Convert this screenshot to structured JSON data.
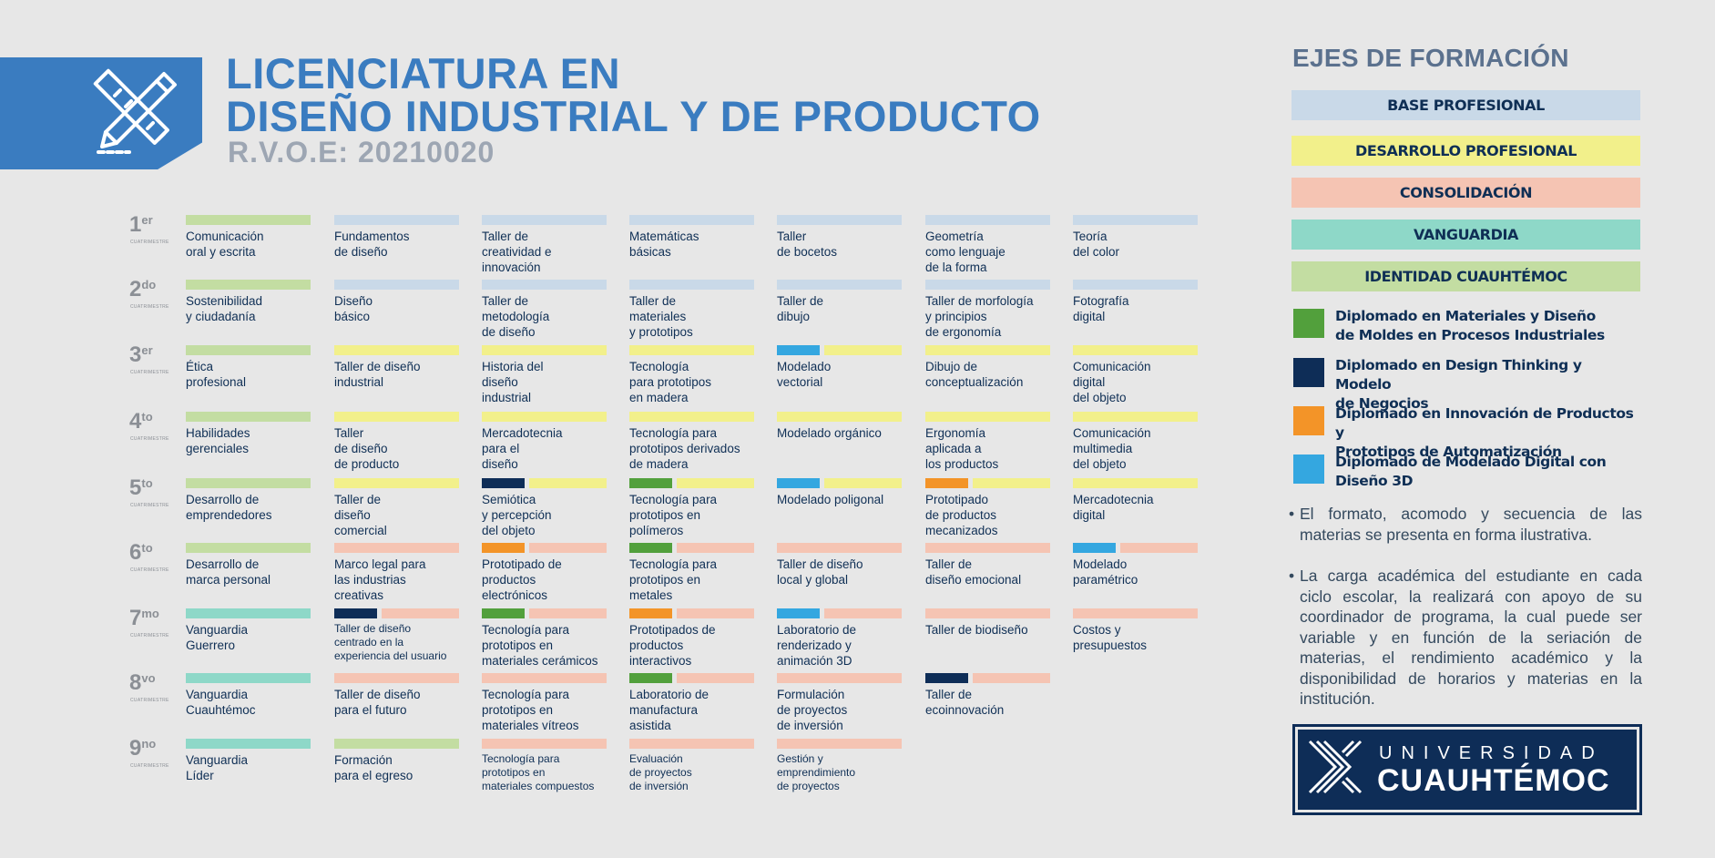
{
  "header": {
    "title_line1": "LICENCIATURA EN",
    "title_line2": "DISEÑO INDUSTRIAL Y DE PRODUCTO",
    "rvoe": "R.V.O.E: 20210020"
  },
  "colors": {
    "base": "#c9d9e8",
    "desarrollo": "#f2f08b",
    "consolidacion": "#f5c4b3",
    "vanguardia": "#8ed8c8",
    "identidad": "#c3dda2",
    "dip_materiales": "#52a03c",
    "dip_design_thinking": "#0e2d57",
    "dip_innovacion": "#f39428",
    "dip_modelado": "#34a7e0"
  },
  "terms": [
    {
      "num": "1",
      "sup": "er",
      "sub": "CUATRIMESTRE"
    },
    {
      "num": "2",
      "sup": "do",
      "sub": "CUATRIMESTRE"
    },
    {
      "num": "3",
      "sup": "er",
      "sub": "CUATRIMESTRE"
    },
    {
      "num": "4",
      "sup": "to",
      "sub": "CUATRIMESTRE"
    },
    {
      "num": "5",
      "sup": "to",
      "sub": "CUATRIMESTRE"
    },
    {
      "num": "6",
      "sup": "to",
      "sub": "CUATRIMESTRE"
    },
    {
      "num": "7",
      "sup": "mo",
      "sub": "CUATRIMESTRE"
    },
    {
      "num": "8",
      "sup": "vo",
      "sub": "CUATRIMESTRE"
    },
    {
      "num": "9",
      "sup": "no",
      "sub": "CUATRIMESTRE"
    }
  ],
  "courses": [
    [
      {
        "text": "Comunicación\noral y escrita",
        "axis": "identidad"
      },
      {
        "text": "Fundamentos\nde diseño",
        "axis": "base"
      },
      {
        "text": "Taller de\ncreatividad e\ninnovación",
        "axis": "base"
      },
      {
        "text": "Matemáticas\nbásicas",
        "axis": "base"
      },
      {
        "text": "Taller\nde bocetos",
        "axis": "base"
      },
      {
        "text": "Geometría\ncomo lenguaje\nde la forma",
        "axis": "base"
      },
      {
        "text": "Teoría\ndel color",
        "axis": "base"
      }
    ],
    [
      {
        "text": "Sostenibilidad\ny ciudadanía",
        "axis": "identidad"
      },
      {
        "text": "Diseño\nbásico",
        "axis": "base"
      },
      {
        "text": "Taller de\nmetodología\nde diseño",
        "axis": "base"
      },
      {
        "text": "Taller de\nmateriales\ny prototipos",
        "axis": "base"
      },
      {
        "text": "Taller de\ndibujo",
        "axis": "base"
      },
      {
        "text": "Taller de morfología\ny principios\nde ergonomía",
        "axis": "base"
      },
      {
        "text": "Fotografía\ndigital",
        "axis": "base"
      }
    ],
    [
      {
        "text": "Ética\nprofesional",
        "axis": "identidad"
      },
      {
        "text": "Taller de diseño\nindustrial",
        "axis": "desarrollo"
      },
      {
        "text": "Historia del\ndiseño\nindustrial",
        "axis": "desarrollo"
      },
      {
        "text": "Tecnología\npara prototipos\nen madera",
        "axis": "desarrollo"
      },
      {
        "text": "Modelado\nvectorial",
        "axis": "desarrollo",
        "dip": "dip_modelado"
      },
      {
        "text": "Dibujo de\nconceptualización",
        "axis": "desarrollo"
      },
      {
        "text": "Comunicación\ndigital\ndel objeto",
        "axis": "desarrollo"
      }
    ],
    [
      {
        "text": "Habilidades\ngerenciales",
        "axis": "identidad"
      },
      {
        "text": "Taller\nde diseño\nde producto",
        "axis": "desarrollo"
      },
      {
        "text": "Mercadotecnia\npara el\ndiseño",
        "axis": "desarrollo"
      },
      {
        "text": "Tecnología para\nprototipos derivados\nde madera",
        "axis": "desarrollo"
      },
      {
        "text": "Modelado orgánico",
        "axis": "desarrollo"
      },
      {
        "text": "Ergonomía\naplicada a\nlos productos",
        "axis": "desarrollo"
      },
      {
        "text": "Comunicación\nmultimedia\ndel objeto",
        "axis": "desarrollo"
      }
    ],
    [
      {
        "text": "Desarrollo de\nemprendedores",
        "axis": "identidad"
      },
      {
        "text": "Taller de\ndiseño\ncomercial",
        "axis": "desarrollo"
      },
      {
        "text": "Semiótica\ny percepción\ndel objeto",
        "axis": "desarrollo",
        "dip": "dip_design_thinking"
      },
      {
        "text": "Tecnología para\nprototipos en\npolímeros",
        "axis": "desarrollo",
        "dip": "dip_materiales"
      },
      {
        "text": "Modelado poligonal",
        "axis": "desarrollo",
        "dip": "dip_modelado"
      },
      {
        "text": "Prototipado\nde productos\nmecanizados",
        "axis": "desarrollo",
        "dip": "dip_innovacion"
      },
      {
        "text": "Mercadotecnia\ndigital",
        "axis": "desarrollo"
      }
    ],
    [
      {
        "text": "Desarrollo de\nmarca personal",
        "axis": "identidad"
      },
      {
        "text": "Marco legal para\nlas industrias\ncreativas",
        "axis": "consolidacion"
      },
      {
        "text": "Prototipado de\nproductos\nelectrónicos",
        "axis": "consolidacion",
        "dip": "dip_innovacion"
      },
      {
        "text": "Tecnología para\nprototipos en\nmetales",
        "axis": "consolidacion",
        "dip": "dip_materiales"
      },
      {
        "text": "Taller de diseño\nlocal y global",
        "axis": "consolidacion"
      },
      {
        "text": "Taller de\ndiseño emocional",
        "axis": "consolidacion"
      },
      {
        "text": "Modelado\nparamétrico",
        "axis": "consolidacion",
        "dip": "dip_modelado"
      }
    ],
    [
      {
        "text": "Vanguardia\nGuerrero",
        "axis": "vanguardia"
      },
      {
        "text": "Taller de diseño\ncentrado en la\nexperiencia del usuario",
        "axis": "consolidacion",
        "dip": "dip_design_thinking",
        "small": true
      },
      {
        "text": "Tecnología para\nprototipos en\nmateriales cerámicos",
        "axis": "consolidacion",
        "dip": "dip_materiales"
      },
      {
        "text": "Prototipados de\nproductos\ninteractivos",
        "axis": "consolidacion",
        "dip": "dip_innovacion"
      },
      {
        "text": "Laboratorio de\nrenderizado y\nanimación 3D",
        "axis": "consolidacion",
        "dip": "dip_modelado"
      },
      {
        "text": "Taller de biodiseño",
        "axis": "consolidacion"
      },
      {
        "text": "Costos y\npresupuestos",
        "axis": "consolidacion"
      }
    ],
    [
      {
        "text": "Vanguardia\nCuauhtémoc",
        "axis": "vanguardia"
      },
      {
        "text": "Taller de diseño\npara el futuro",
        "axis": "consolidacion"
      },
      {
        "text": "Tecnología para\nprototipos en\nmateriales vítreos",
        "axis": "consolidacion"
      },
      {
        "text": "Laboratorio de\nmanufactura\nasistida",
        "axis": "consolidacion",
        "dip": "dip_materiales"
      },
      {
        "text": "Formulación\nde proyectos\nde inversión",
        "axis": "consolidacion"
      },
      {
        "text": "Taller de\necoinnovación",
        "axis": "consolidacion",
        "dip": "dip_design_thinking"
      }
    ],
    [
      {
        "text": "Vanguardia\nLíder",
        "axis": "vanguardia"
      },
      {
        "text": "Formación\npara el egreso",
        "axis": "identidad"
      },
      {
        "text": "Tecnología para\nprototipos en\nmateriales compuestos",
        "axis": "consolidacion",
        "small": true
      },
      {
        "text": "Evaluación\nde proyectos\nde inversión",
        "axis": "consolidacion",
        "small": true
      },
      {
        "text": "Gestión y\nemprendimiento\nde proyectos",
        "axis": "consolidacion",
        "small": true
      }
    ]
  ],
  "legend": {
    "title": "EJES DE FORMACIÓN",
    "axes": [
      {
        "label": "BASE PROFESIONAL",
        "color": "#c9d9e8"
      },
      {
        "label": "DESARROLLO PROFESIONAL",
        "color": "#f2f08b"
      },
      {
        "label": "CONSOLIDACIÓN",
        "color": "#f5c4b3"
      },
      {
        "label": "VANGUARDIA",
        "color": "#8ed8c8"
      },
      {
        "label": "IDENTIDAD CUAUHTÉMOC",
        "color": "#c3dda2"
      }
    ],
    "diplomados": [
      {
        "label": "Diplomado en Materiales y Diseño\nde Moldes en Procesos Industriales",
        "color": "#52a03c"
      },
      {
        "label": "Diplomado en Design Thinking y Modelo\nde Negocios",
        "color": "#0e2d57"
      },
      {
        "label": "Diplomado en Innovación de Productos y\nPrototipos de Automatización",
        "color": "#f39428"
      },
      {
        "label": "Diplomado de Modelado Digital con\nDiseño 3D",
        "color": "#34a7e0"
      }
    ]
  },
  "notes": [
    "El formato, acomodo y secuencia de las materias se presenta en forma ilustrativa.",
    "La carga académica del estudiante en cada ciclo escolar, la realizará con apoyo de su coordinador de programa, la cual puede ser variable y en función de la seriación de materias, el rendimiento académico y la disponibilidad de horarios y materias en la institución."
  ],
  "university": {
    "line1": "UNIVERSIDAD",
    "line2": "CUAUHTÉMOC"
  }
}
